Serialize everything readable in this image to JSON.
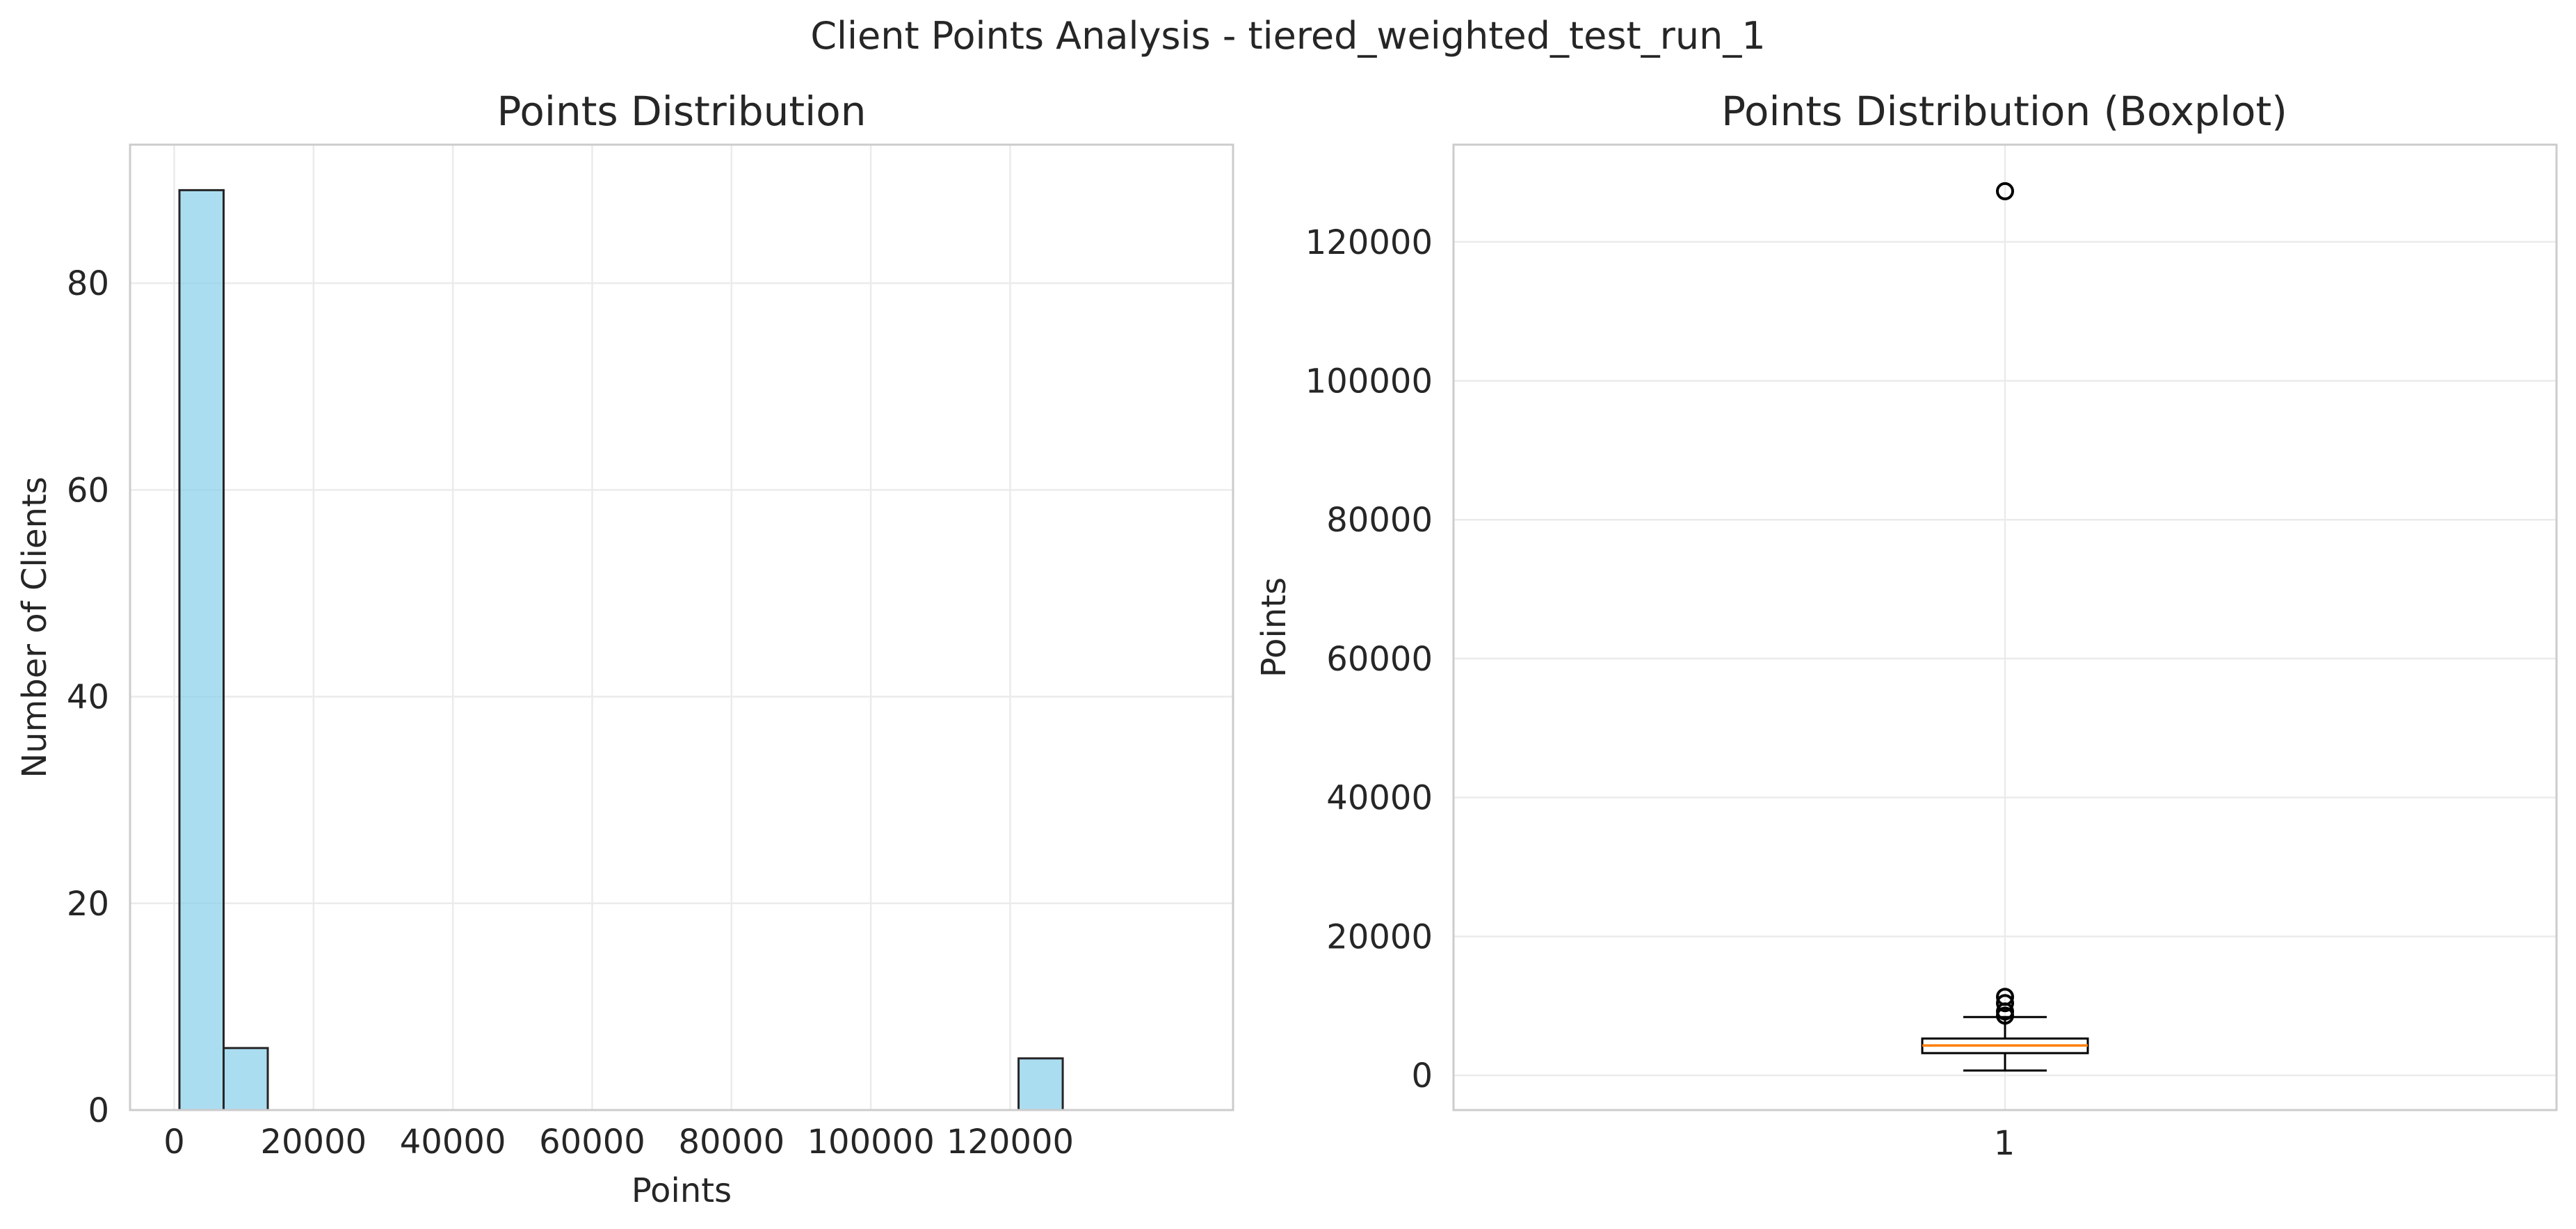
{
  "figure": {
    "suptitle": "Client Points Analysis - tiered_weighted_test_run_1"
  },
  "chart_data": [
    {
      "type": "bar",
      "subtype": "histogram",
      "title": "Points Distribution",
      "xlabel": "Points",
      "ylabel": "Number of Clients",
      "xlim": [
        -6340,
        152000
      ],
      "ylim": [
        0,
        93.4
      ],
      "xticks": [
        0,
        20000,
        40000,
        60000,
        80000,
        100000,
        120000
      ],
      "yticks": [
        0,
        20,
        40,
        60,
        80
      ],
      "grid": true,
      "bar_fill": "#87ceeb",
      "bar_edge": "#262626",
      "bins": [
        {
          "start": 750,
          "end": 7090,
          "count": 89
        },
        {
          "start": 7090,
          "end": 13430,
          "count": 6
        },
        {
          "start": 13430,
          "end": 19770,
          "count": 0
        },
        {
          "start": 19770,
          "end": 26110,
          "count": 0
        },
        {
          "start": 26110,
          "end": 32450,
          "count": 0
        },
        {
          "start": 32450,
          "end": 38790,
          "count": 0
        },
        {
          "start": 38790,
          "end": 45130,
          "count": 0
        },
        {
          "start": 45130,
          "end": 51470,
          "count": 0
        },
        {
          "start": 51470,
          "end": 57810,
          "count": 0
        },
        {
          "start": 57810,
          "end": 64150,
          "count": 0
        },
        {
          "start": 64150,
          "end": 70490,
          "count": 0
        },
        {
          "start": 70490,
          "end": 76830,
          "count": 0
        },
        {
          "start": 76830,
          "end": 83170,
          "count": 0
        },
        {
          "start": 83170,
          "end": 89510,
          "count": 0
        },
        {
          "start": 89510,
          "end": 95850,
          "count": 0
        },
        {
          "start": 95850,
          "end": 102190,
          "count": 0
        },
        {
          "start": 102190,
          "end": 108530,
          "count": 0
        },
        {
          "start": 108530,
          "end": 114870,
          "count": 0
        },
        {
          "start": 114870,
          "end": 121210,
          "count": 0
        },
        {
          "start": 121210,
          "end": 127550,
          "count": 5
        }
      ]
    },
    {
      "type": "boxplot",
      "title": "Points Distribution (Boxplot)",
      "xlabel": "",
      "ylabel": "Points",
      "category": "1",
      "ylim": [
        -5000,
        134000
      ],
      "yticks": [
        0,
        20000,
        40000,
        60000,
        80000,
        100000,
        120000
      ],
      "grid": true,
      "median_color": "#ff7f0e",
      "box": {
        "whisker_low": 700,
        "q1": 3200,
        "median": 4300,
        "q3": 5300,
        "whisker_high": 8400
      },
      "outliers": [
        8600,
        9200,
        10400,
        11300,
        127300
      ]
    }
  ]
}
